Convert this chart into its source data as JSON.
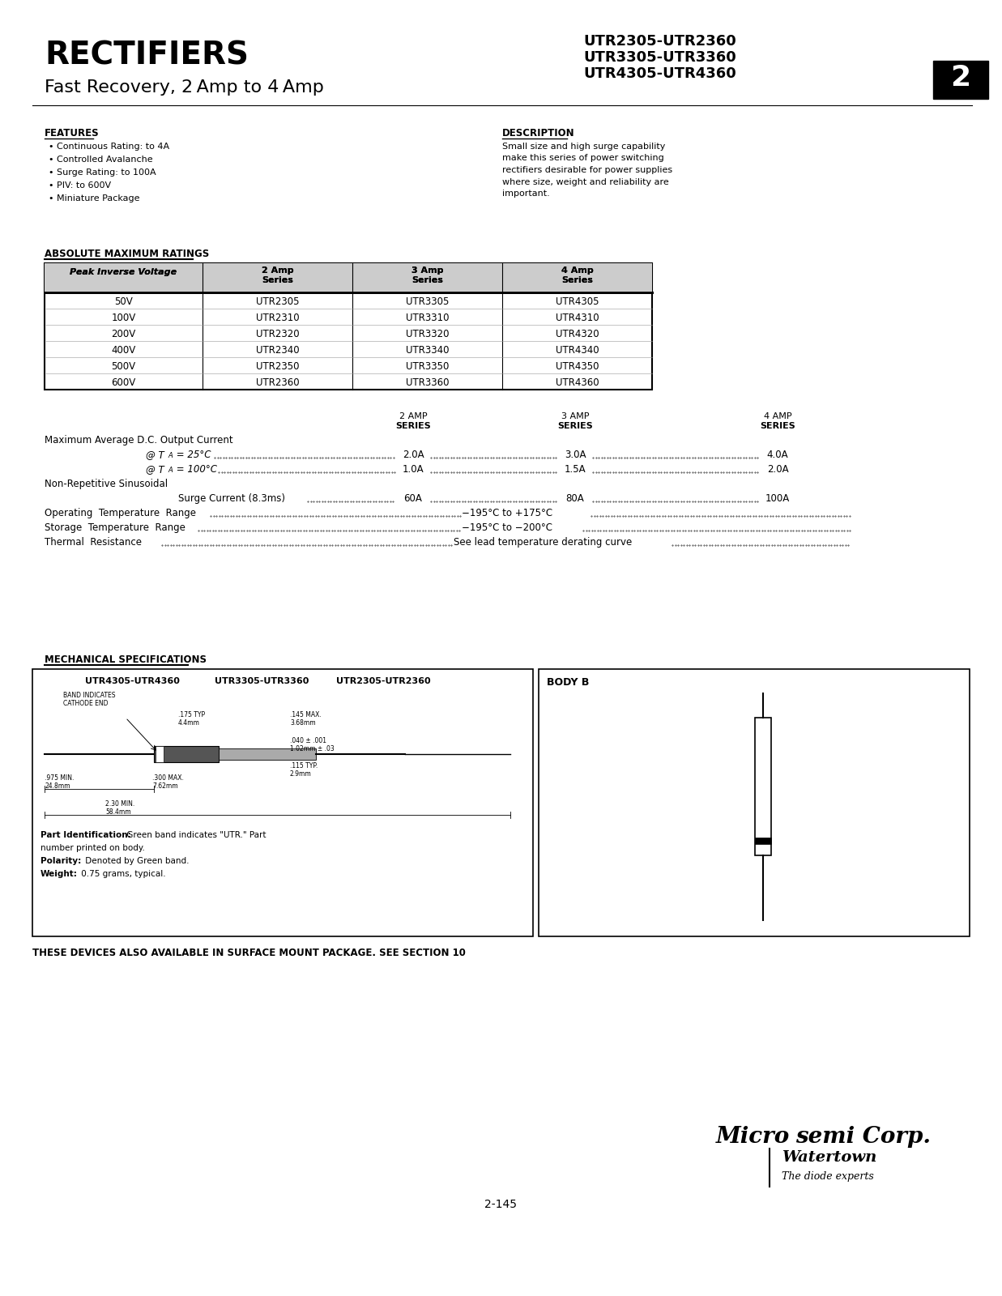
{
  "title": "RECTIFIERS",
  "subtitle": "Fast Recovery, 2 Amp to 4 Amp",
  "part_numbers_right": [
    "UTR2305-UTR2360",
    "UTR3305-UTR3360",
    "UTR4305-UTR4360"
  ],
  "section_number": "2",
  "features_title": "FEATURES",
  "features": [
    "Continuous Rating: to 4A",
    "Controlled Avalanche",
    "Surge Rating: to 100A",
    "PIV: to 600V",
    "Miniature Package"
  ],
  "description_title": "DESCRIPTION",
  "description_lines": [
    "Small size and high surge capability",
    "make this series of power switching",
    "rectifiers desirable for power supplies",
    "where size, weight and reliability are",
    "important."
  ],
  "abs_max_title": "ABSOLUTE MAXIMUM RATINGS",
  "table_header": [
    "Peak Inverse Voltage",
    "2 Amp\nSeries",
    "3 Amp\nSeries",
    "4 Amp\nSeries"
  ],
  "table_rows": [
    [
      "50V",
      "UTR2305",
      "UTR3305",
      "UTR4305"
    ],
    [
      "100V",
      "UTR2310",
      "UTR3310",
      "UTR4310"
    ],
    [
      "200V",
      "UTR2320",
      "UTR3320",
      "UTR4320"
    ],
    [
      "400V",
      "UTR2340",
      "UTR3340",
      "UTR4340"
    ],
    [
      "500V",
      "UTR2350",
      "UTR3350",
      "UTR4350"
    ],
    [
      "600V",
      "UTR2360",
      "UTR3360",
      "UTR4360"
    ]
  ],
  "mech_title": "MECHANICAL SPECIFICATIONS",
  "surface_mount_note": "THESE DEVICES ALSO AVAILABLE IN SURFACE MOUNT PACKAGE. SEE SECTION 10",
  "page_number": "2-145",
  "bg_color": "#ffffff"
}
